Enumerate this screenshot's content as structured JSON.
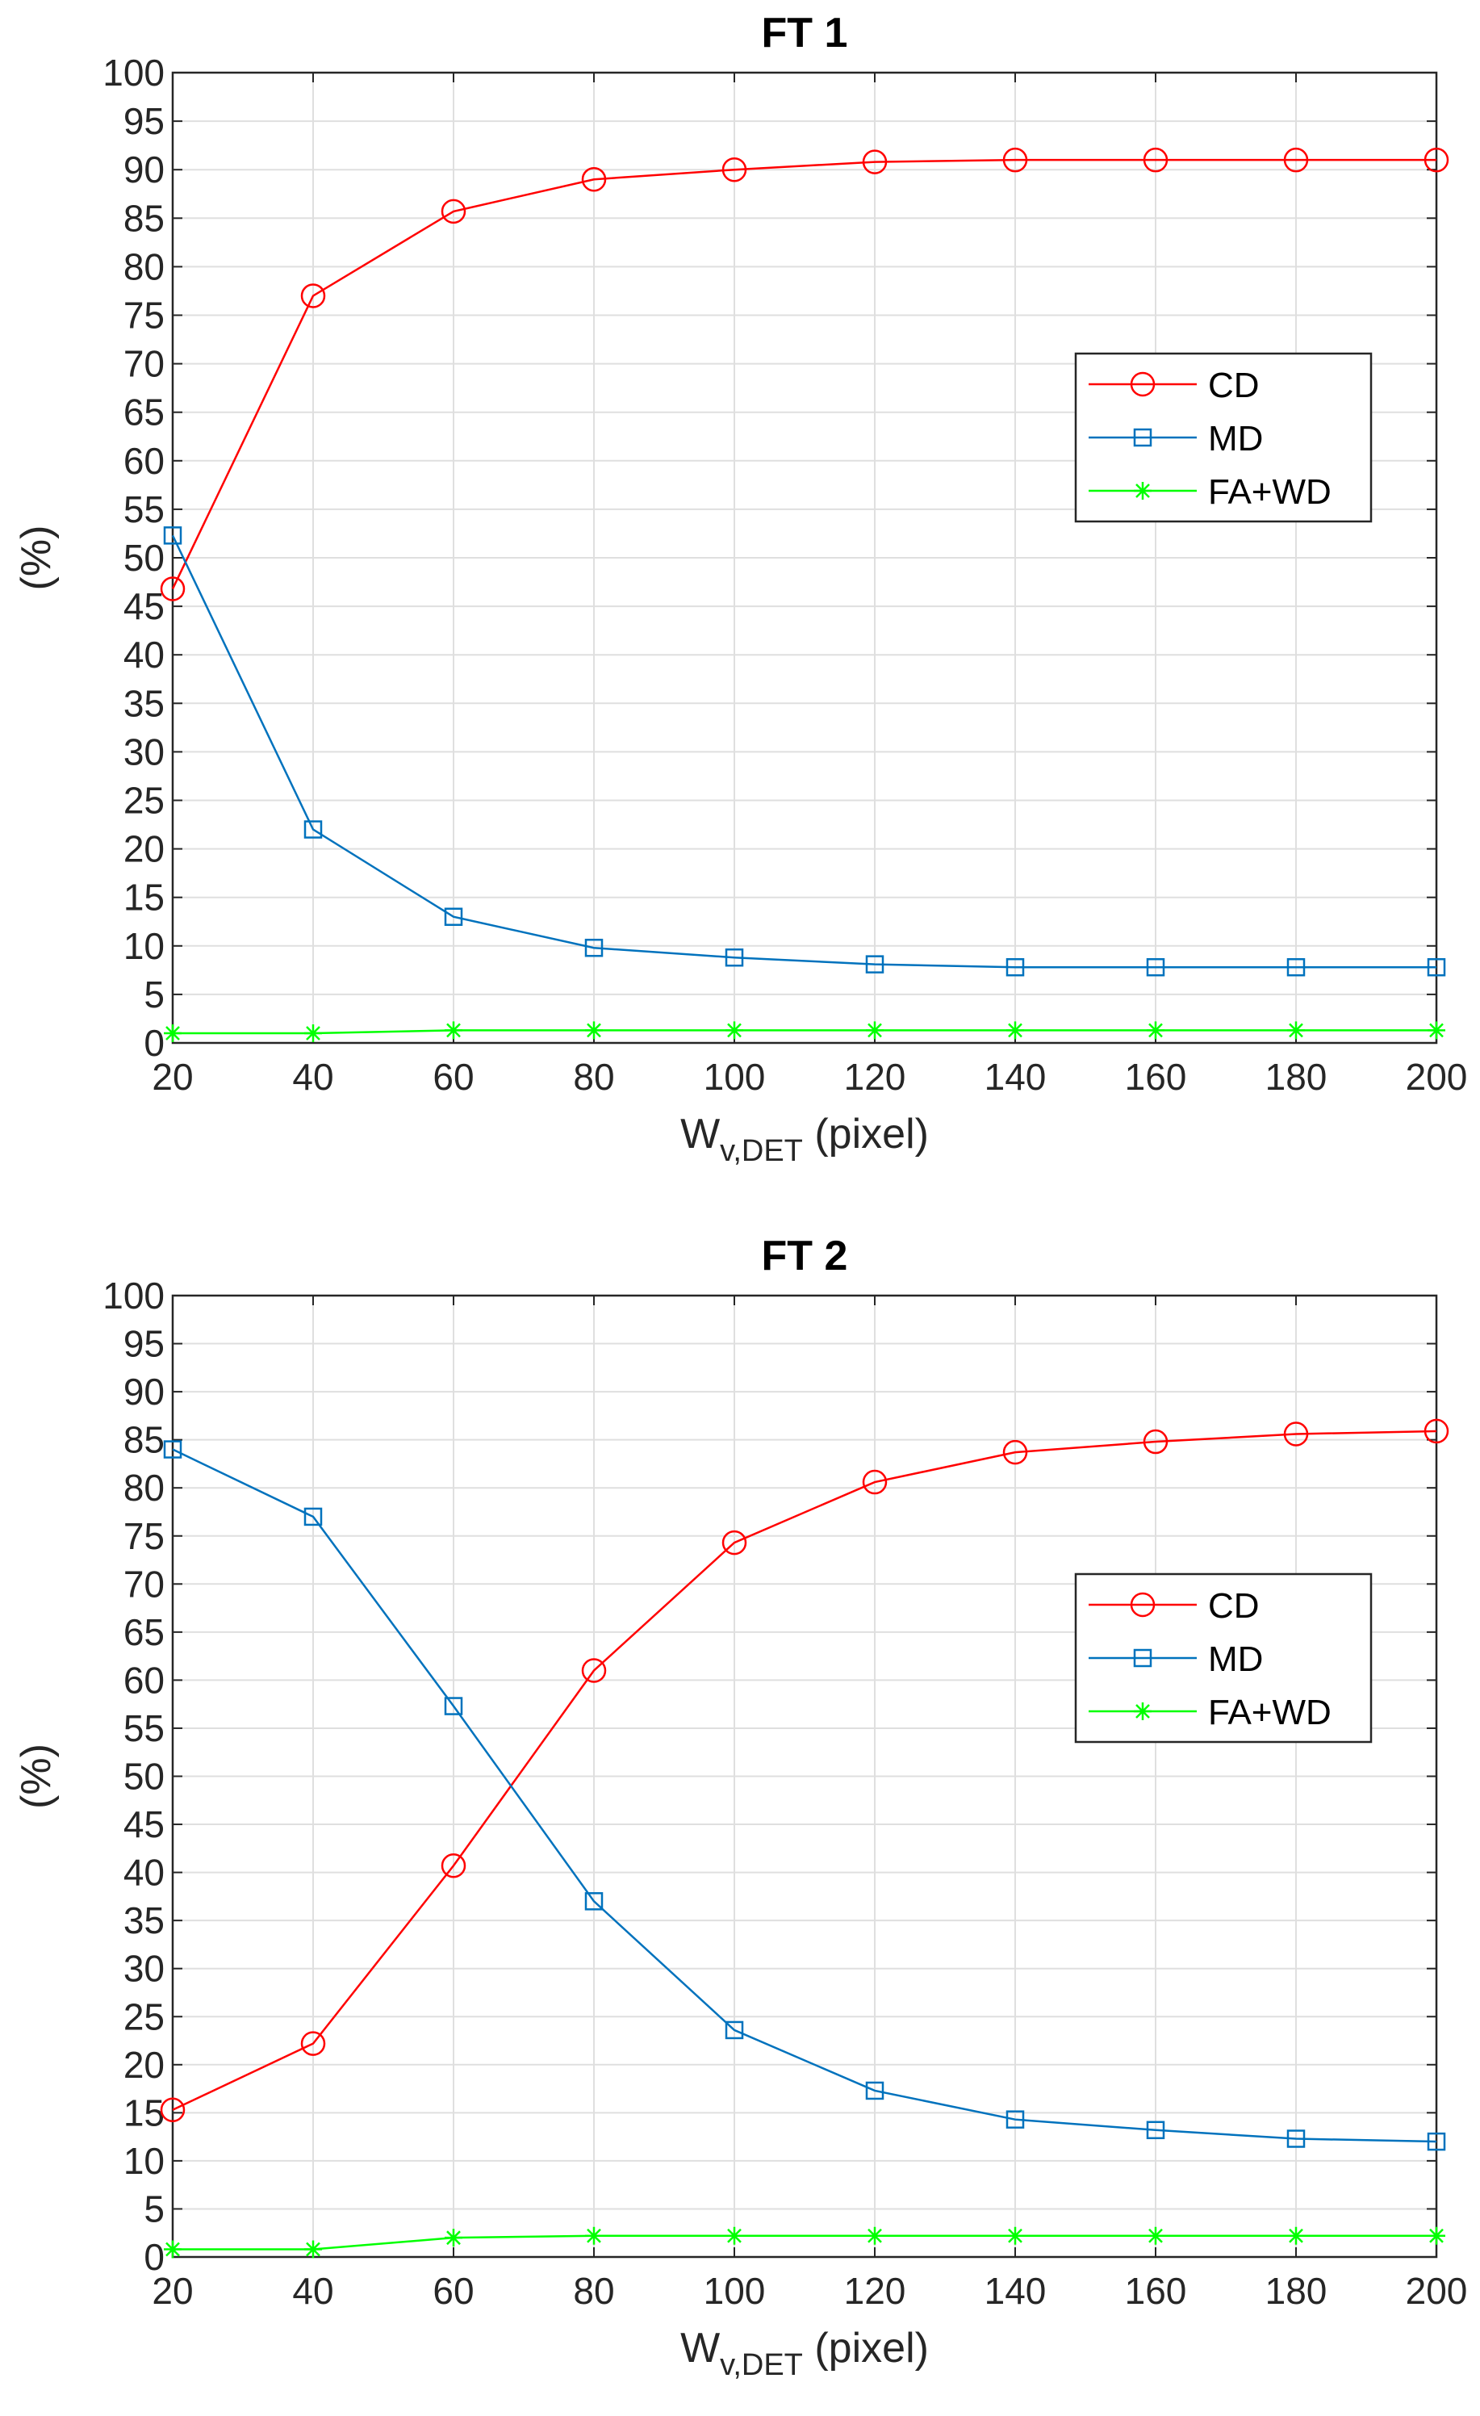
{
  "chart_data": [
    {
      "type": "line",
      "title": "FT 1",
      "xlabel": {
        "main": "W",
        "sub": "v,DET",
        "unit": " (pixel)"
      },
      "ylabel": "(%)",
      "x": [
        20,
        40,
        60,
        80,
        100,
        120,
        140,
        160,
        180,
        200
      ],
      "xlim": [
        20,
        200
      ],
      "ylim": [
        0,
        100
      ],
      "xticks": [
        "20",
        "40",
        "60",
        "80",
        "100",
        "120",
        "140",
        "160",
        "180",
        "200"
      ],
      "yticks": [
        "0",
        "5",
        "10",
        "15",
        "20",
        "25",
        "30",
        "35",
        "40",
        "45",
        "50",
        "55",
        "60",
        "65",
        "70",
        "75",
        "80",
        "85",
        "90",
        "95",
        "100"
      ],
      "grid": true,
      "legend_position": "right",
      "series": [
        {
          "name": "CD",
          "marker": "circle",
          "color": "#ff0000",
          "values": [
            46.8,
            77.0,
            85.7,
            89.0,
            90.0,
            90.8,
            91.0,
            91.0,
            91.0,
            91.0
          ]
        },
        {
          "name": "MD",
          "marker": "square",
          "color": "#0072bd",
          "values": [
            52.3,
            22.0,
            13.0,
            9.8,
            8.8,
            8.1,
            7.8,
            7.8,
            7.8,
            7.8
          ]
        },
        {
          "name": "FA+WD",
          "marker": "star",
          "color": "#00ff00",
          "values": [
            1.0,
            1.0,
            1.3,
            1.3,
            1.3,
            1.3,
            1.3,
            1.3,
            1.3,
            1.3
          ]
        }
      ]
    },
    {
      "type": "line",
      "title": "FT 2",
      "xlabel": {
        "main": "W",
        "sub": "v,DET",
        "unit": " (pixel)"
      },
      "ylabel": "(%)",
      "x": [
        20,
        40,
        60,
        80,
        100,
        120,
        140,
        160,
        180,
        200
      ],
      "xlim": [
        20,
        200
      ],
      "ylim": [
        0,
        100
      ],
      "xticks": [
        "20",
        "40",
        "60",
        "80",
        "100",
        "120",
        "140",
        "160",
        "180",
        "200"
      ],
      "yticks": [
        "0",
        "5",
        "10",
        "15",
        "20",
        "25",
        "30",
        "35",
        "40",
        "45",
        "50",
        "55",
        "60",
        "65",
        "70",
        "75",
        "80",
        "85",
        "90",
        "95",
        "100"
      ],
      "grid": true,
      "legend_position": "right",
      "series": [
        {
          "name": "CD",
          "marker": "circle",
          "color": "#ff0000",
          "values": [
            15.3,
            22.2,
            40.7,
            61.0,
            74.3,
            80.6,
            83.7,
            84.8,
            85.6,
            85.9
          ]
        },
        {
          "name": "MD",
          "marker": "square",
          "color": "#0072bd",
          "values": [
            84.0,
            77.0,
            57.3,
            37.0,
            23.6,
            17.3,
            14.3,
            13.2,
            12.3,
            12.0
          ]
        },
        {
          "name": "FA+WD",
          "marker": "star",
          "color": "#00ff00",
          "values": [
            0.8,
            0.8,
            2.0,
            2.2,
            2.2,
            2.2,
            2.2,
            2.2,
            2.2,
            2.2
          ]
        }
      ]
    }
  ]
}
